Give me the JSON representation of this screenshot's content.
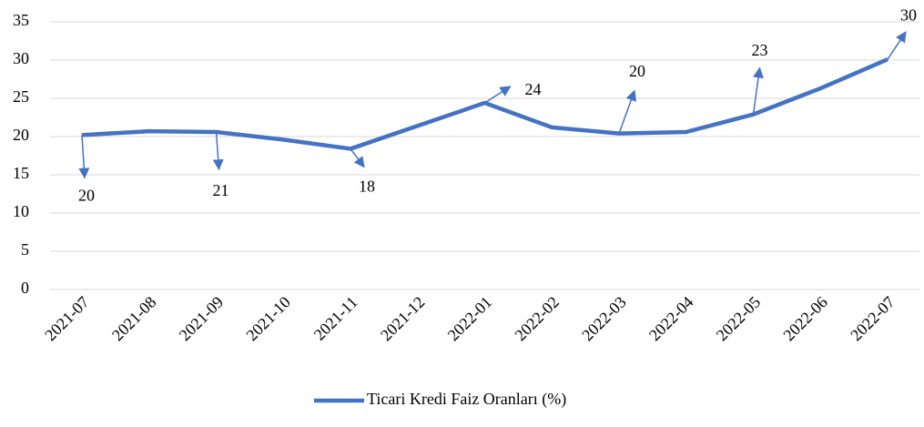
{
  "chart_data": {
    "type": "line",
    "categories": [
      "2021-07",
      "2021-08",
      "2021-09",
      "2021-10",
      "2021-11",
      "2021-12",
      "2022-01",
      "2022-02",
      "2022-03",
      "2022-04",
      "2022-05",
      "2022-06",
      "2022-07"
    ],
    "series": [
      {
        "name": "Ticari Kredi Faiz Oranları (%)",
        "color": "#4472c4",
        "values": [
          20.2,
          20.7,
          20.6,
          19.6,
          18.4,
          21.4,
          24.4,
          21.2,
          20.4,
          20.6,
          22.9,
          26.3,
          30.1
        ],
        "value_labels": [
          "20",
          null,
          "21",
          null,
          "18",
          null,
          "24",
          null,
          "20",
          null,
          "23",
          null,
          "30"
        ]
      }
    ],
    "ylim": [
      0,
      35
    ],
    "yticks": [
      0,
      5,
      10,
      15,
      20,
      25,
      30,
      35
    ],
    "grid": true,
    "legend": "bottom"
  }
}
